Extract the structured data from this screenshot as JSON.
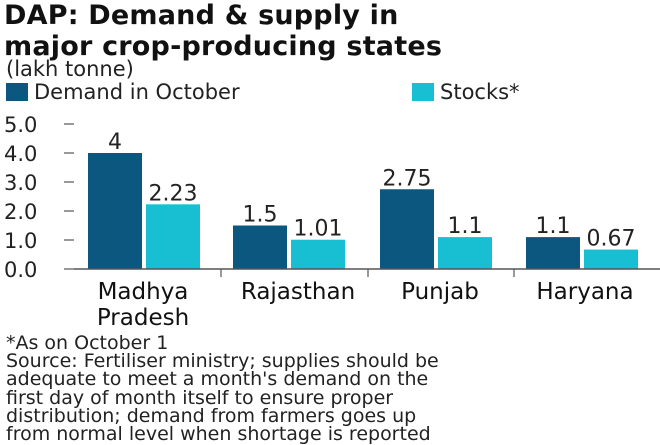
{
  "chart_data": {
    "type": "bar",
    "title_lines": [
      "DAP: Demand & supply in",
      "major crop-producing states"
    ],
    "unit": "(lakh tonne)",
    "categories": [
      [
        "Madhya",
        "Pradesh"
      ],
      [
        "Rajasthan"
      ],
      [
        "Punjab"
      ],
      [
        "Haryana"
      ]
    ],
    "series": [
      {
        "name": "Demand in October",
        "color": "#0b5780",
        "values": [
          4,
          1.5,
          2.75,
          1.1
        ],
        "labels": [
          "4",
          "1.5",
          "2.75",
          "1.1"
        ]
      },
      {
        "name": "Stocks*",
        "color": "#18bfd2",
        "values": [
          2.23,
          1.01,
          1.1,
          0.67
        ],
        "labels": [
          "2.23",
          "1.01",
          "1.1",
          "0.67"
        ]
      }
    ],
    "y_ticks": [
      "0.0",
      "1.0",
      "2.0",
      "3.0",
      "4.0",
      "5.0"
    ],
    "ylim": [
      0,
      5
    ],
    "grid": false,
    "legend_position": "top-left"
  },
  "footnote": "*As on October 1",
  "source_lines": [
    "Source: Fertiliser ministry; supplies should be",
    "adequate to meet a month's demand on the",
    "first day of month itself to ensure proper",
    "distribution; demand from farmers goes up",
    "from normal level when shortage is reported"
  ]
}
